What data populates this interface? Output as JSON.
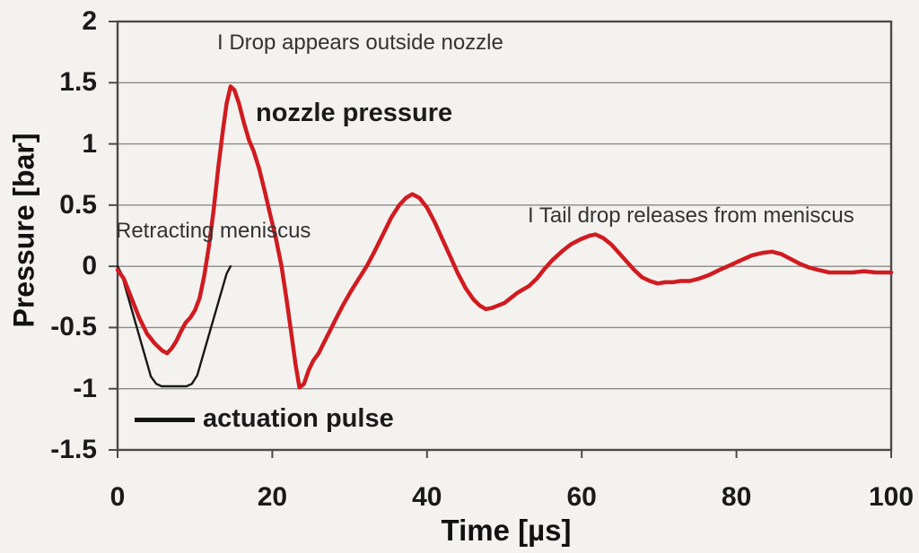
{
  "axes": {
    "x": {
      "title": "Time [µs]",
      "ticks": [
        0,
        20,
        40,
        60,
        80,
        100
      ],
      "range": [
        0,
        100
      ]
    },
    "y": {
      "title": "Pressure [bar]",
      "ticks": [
        2,
        1.5,
        1,
        0.5,
        0,
        -0.5,
        -1,
        -1.5
      ],
      "range": [
        -1.5,
        2
      ]
    }
  },
  "annotations": {
    "drop": "I Drop appears outside nozzle",
    "retracting": "Retracting meniscus",
    "tail": "I Tail drop releases from meniscus",
    "nozzle_series_label": "nozzle pressure",
    "actuation_legend_label": "actuation pulse"
  },
  "colors": {
    "nozzle_pressure": "#d01b20",
    "actuation_pulse": "#181818",
    "grid": "#8a8a8a",
    "axis_border": "#4a4a4a",
    "background": "#f3f2ef"
  },
  "chart_data": {
    "type": "line",
    "title": "",
    "xlabel": "Time [µs]",
    "ylabel": "Pressure [bar]",
    "xlim": [
      0,
      100
    ],
    "ylim": [
      -1.5,
      2
    ],
    "x_ticks": [
      0,
      20,
      40,
      60,
      80,
      100
    ],
    "y_ticks": [
      2,
      1.5,
      1,
      0.5,
      0,
      -0.5,
      -1,
      -1.5
    ],
    "grid": "horizontal-only",
    "legend_position": "inside-bottom-left",
    "series": [
      {
        "name": "actuation pulse",
        "color": "#181818",
        "stroke_width": 2.4,
        "points": [
          [
            0,
            0
          ],
          [
            0.5,
            -0.06
          ],
          [
            4.3,
            -0.9
          ],
          [
            5,
            -0.96
          ],
          [
            5.7,
            -0.98
          ],
          [
            8.9,
            -0.98
          ],
          [
            9.6,
            -0.96
          ],
          [
            10.3,
            -0.89
          ],
          [
            14.1,
            -0.06
          ],
          [
            14.6,
            0
          ]
        ]
      },
      {
        "name": "nozzle pressure",
        "color": "#d01b20",
        "stroke_width": 4.5,
        "points": [
          [
            0,
            -0.03
          ],
          [
            0.8,
            -0.1
          ],
          [
            1.8,
            -0.26
          ],
          [
            2.8,
            -0.42
          ],
          [
            3.8,
            -0.55
          ],
          [
            4.8,
            -0.63
          ],
          [
            5.8,
            -0.69
          ],
          [
            6.4,
            -0.71
          ],
          [
            7,
            -0.67
          ],
          [
            7.6,
            -0.61
          ],
          [
            8.2,
            -0.53
          ],
          [
            8.8,
            -0.46
          ],
          [
            9.4,
            -0.42
          ],
          [
            10,
            -0.36
          ],
          [
            10.6,
            -0.26
          ],
          [
            11.2,
            -0.08
          ],
          [
            11.8,
            0.16
          ],
          [
            12.4,
            0.45
          ],
          [
            13,
            0.8
          ],
          [
            13.6,
            1.1
          ],
          [
            14.1,
            1.33
          ],
          [
            14.6,
            1.47
          ],
          [
            15.1,
            1.44
          ],
          [
            15.7,
            1.33
          ],
          [
            16.3,
            1.18
          ],
          [
            17,
            1.03
          ],
          [
            17.6,
            0.94
          ],
          [
            18.3,
            0.8
          ],
          [
            19,
            0.62
          ],
          [
            19.7,
            0.43
          ],
          [
            20.4,
            0.25
          ],
          [
            21.2,
            0
          ],
          [
            21.8,
            -0.25
          ],
          [
            22.4,
            -0.52
          ],
          [
            23,
            -0.8
          ],
          [
            23.5,
            -0.99
          ],
          [
            24.1,
            -0.96
          ],
          [
            24.7,
            -0.85
          ],
          [
            25.3,
            -0.77
          ],
          [
            26,
            -0.71
          ],
          [
            26.7,
            -0.62
          ],
          [
            27.5,
            -0.52
          ],
          [
            28.3,
            -0.42
          ],
          [
            29.2,
            -0.31
          ],
          [
            30.2,
            -0.2
          ],
          [
            31.2,
            -0.1
          ],
          [
            32.2,
            0
          ],
          [
            33.2,
            0.12
          ],
          [
            34.3,
            0.26
          ],
          [
            35.4,
            0.4
          ],
          [
            36.4,
            0.5
          ],
          [
            37.3,
            0.56
          ],
          [
            38.1,
            0.59
          ],
          [
            39,
            0.56
          ],
          [
            40,
            0.48
          ],
          [
            41,
            0.36
          ],
          [
            42,
            0.22
          ],
          [
            43,
            0.08
          ],
          [
            44,
            -0.06
          ],
          [
            45,
            -0.18
          ],
          [
            46,
            -0.27
          ],
          [
            46.8,
            -0.32
          ],
          [
            47.6,
            -0.35
          ],
          [
            48.4,
            -0.34
          ],
          [
            49.2,
            -0.32
          ],
          [
            50,
            -0.3
          ],
          [
            50.8,
            -0.26
          ],
          [
            51.6,
            -0.22
          ],
          [
            52.4,
            -0.19
          ],
          [
            53.2,
            -0.16
          ],
          [
            54.2,
            -0.1
          ],
          [
            55.2,
            -0.02
          ],
          [
            56.2,
            0.05
          ],
          [
            57.4,
            0.12
          ],
          [
            58.6,
            0.18
          ],
          [
            59.8,
            0.22
          ],
          [
            61,
            0.25
          ],
          [
            61.8,
            0.26
          ],
          [
            62.8,
            0.23
          ],
          [
            63.8,
            0.18
          ],
          [
            64.8,
            0.11
          ],
          [
            65.8,
            0.04
          ],
          [
            66.8,
            -0.03
          ],
          [
            67.8,
            -0.09
          ],
          [
            68.8,
            -0.12
          ],
          [
            69.8,
            -0.14
          ],
          [
            70.8,
            -0.13
          ],
          [
            71.8,
            -0.13
          ],
          [
            72.8,
            -0.12
          ],
          [
            74,
            -0.12
          ],
          [
            75.2,
            -0.1
          ],
          [
            76.5,
            -0.07
          ],
          [
            77.8,
            -0.03
          ],
          [
            79.2,
            0.01
          ],
          [
            80.6,
            0.05
          ],
          [
            82,
            0.09
          ],
          [
            83.4,
            0.11
          ],
          [
            84.6,
            0.12
          ],
          [
            85.8,
            0.1
          ],
          [
            87,
            0.06
          ],
          [
            88.2,
            0.02
          ],
          [
            89.4,
            -0.01
          ],
          [
            90.6,
            -0.03
          ],
          [
            92,
            -0.05
          ],
          [
            93.5,
            -0.05
          ],
          [
            95,
            -0.05
          ],
          [
            96.5,
            -0.04
          ],
          [
            98,
            -0.05
          ],
          [
            100,
            -0.05
          ]
        ]
      }
    ]
  }
}
